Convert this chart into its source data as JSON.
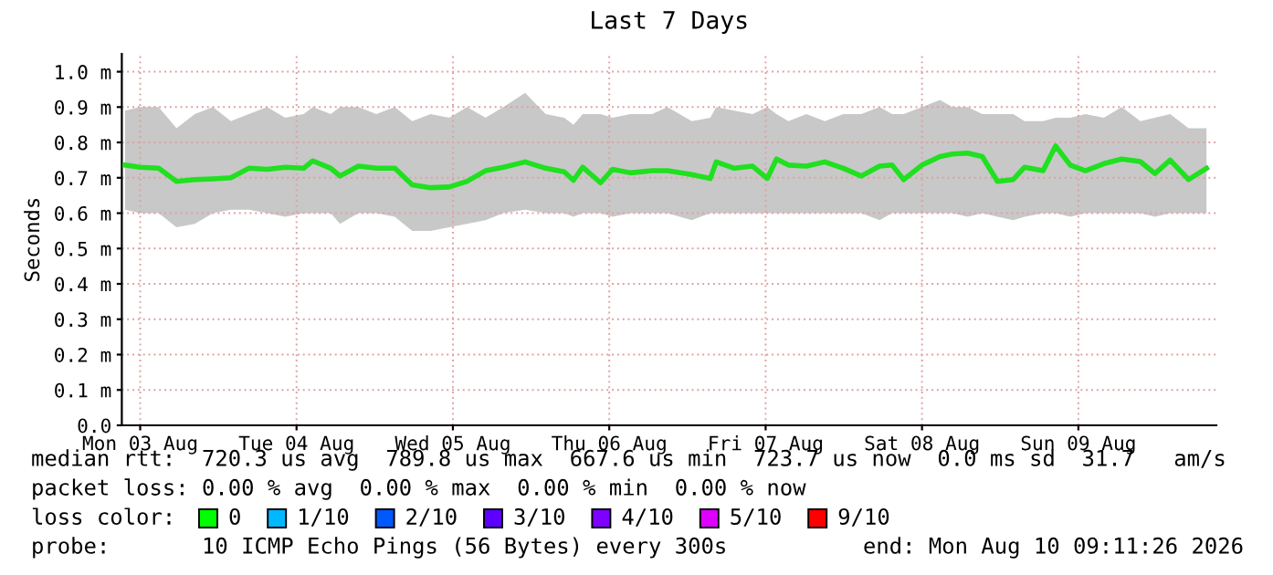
{
  "chart_data": {
    "type": "line",
    "title": "Last 7 Days",
    "ylabel": "Seconds",
    "xlim": [
      "2026-08-03T09:11",
      "2026-08-10T09:11"
    ],
    "xticks": [
      {
        "value": "2026-08-03T12:00",
        "label": "Mon 03 Aug"
      },
      {
        "value": "2026-08-04T12:00",
        "label": "Tue 04 Aug"
      },
      {
        "value": "2026-08-05T12:00",
        "label": "Wed 05 Aug"
      },
      {
        "value": "2026-08-06T12:00",
        "label": "Thu 06 Aug"
      },
      {
        "value": "2026-08-07T12:00",
        "label": "Fri 07 Aug"
      },
      {
        "value": "2026-08-08T12:00",
        "label": "Sat 08 Aug"
      },
      {
        "value": "2026-08-09T12:00",
        "label": "Sun 09 Aug"
      }
    ],
    "ylim": [
      0,
      1.05
    ],
    "yticks": [
      {
        "value": 0,
        "label": "0.0"
      },
      {
        "value": 0.1,
        "label": "0.1 m"
      },
      {
        "value": 0.2,
        "label": "0.2 m"
      },
      {
        "value": 0.3,
        "label": "0.3 m"
      },
      {
        "value": 0.4,
        "label": "0.4 m"
      },
      {
        "value": 0.5,
        "label": "0.5 m"
      },
      {
        "value": 0.6,
        "label": "0.6 m"
      },
      {
        "value": 0.7,
        "label": "0.7 m"
      },
      {
        "value": 0.8,
        "label": "0.8 m"
      },
      {
        "value": 0.9,
        "label": "0.9 m"
      },
      {
        "value": 1.0,
        "label": "1.0 m"
      }
    ],
    "grid": true,
    "legend": false,
    "series": [
      {
        "color": "#20e020",
        "x": [
          "2026-08-03T09:40",
          "2026-08-03T12:00",
          "2026-08-03T14:50",
          "2026-08-03T17:35",
          "2026-08-03T20:23",
          "2026-08-03T23:11",
          "2026-08-04T01:55",
          "2026-08-04T04:40",
          "2026-08-04T07:30",
          "2026-08-04T10:15",
          "2026-08-04T13:05",
          "2026-08-04T14:30",
          "2026-08-04T17:15",
          "2026-08-04T18:40",
          "2026-08-04T21:30",
          "2026-08-05T00:15",
          "2026-08-05T03:05",
          "2026-08-05T05:45",
          "2026-08-05T08:35",
          "2026-08-05T11:25",
          "2026-08-05T14:10",
          "2026-08-05T17:00",
          "2026-08-05T19:45",
          "2026-08-05T23:05",
          "2026-08-06T02:15",
          "2026-08-06T05:05",
          "2026-08-06T06:30",
          "2026-08-06T07:55",
          "2026-08-06T10:40",
          "2026-08-06T12:30",
          "2026-08-06T15:15",
          "2026-08-06T18:35",
          "2026-08-06T20:55",
          "2026-08-07T00:40",
          "2026-08-07T03:30",
          "2026-08-07T04:25",
          "2026-08-07T07:11",
          "2026-08-07T10:00",
          "2026-08-07T12:15",
          "2026-08-07T13:40",
          "2026-08-07T15:30",
          "2026-08-07T18:15",
          "2026-08-07T21:05",
          "2026-08-07T23:55",
          "2026-08-08T02:40",
          "2026-08-08T05:30",
          "2026-08-08T07:25",
          "2026-08-08T09:11",
          "2026-08-08T12:00",
          "2026-08-08T14:45",
          "2026-08-08T16:40",
          "2026-08-08T19:00",
          "2026-08-08T21:15",
          "2026-08-08T23:35",
          "2026-08-09T02:00",
          "2026-08-09T03:45",
          "2026-08-09T06:35",
          "2026-08-09T08:30",
          "2026-08-09T10:45",
          "2026-08-09T13:05",
          "2026-08-09T15:55",
          "2026-08-09T18:40",
          "2026-08-09T21:30",
          "2026-08-09T23:45",
          "2026-08-10T02:05",
          "2026-08-10T04:55",
          "2026-08-10T07:40"
        ],
        "values": [
          0.736,
          0.73,
          0.727,
          0.69,
          0.695,
          0.697,
          0.7,
          0.727,
          0.724,
          0.73,
          0.727,
          0.748,
          0.727,
          0.705,
          0.733,
          0.727,
          0.727,
          0.68,
          0.672,
          0.674,
          0.69,
          0.72,
          0.73,
          0.745,
          0.727,
          0.717,
          0.693,
          0.73,
          0.686,
          0.724,
          0.714,
          0.72,
          0.72,
          0.709,
          0.698,
          0.745,
          0.727,
          0.733,
          0.698,
          0.753,
          0.736,
          0.733,
          0.745,
          0.727,
          0.705,
          0.733,
          0.736,
          0.695,
          0.736,
          0.76,
          0.767,
          0.77,
          0.76,
          0.69,
          0.695,
          0.73,
          0.72,
          0.79,
          0.736,
          0.72,
          0.74,
          0.753,
          0.746,
          0.712,
          0.75,
          0.695,
          0.727
        ],
        "lower": [
          0.61,
          0.6,
          0.6,
          0.56,
          0.57,
          0.6,
          0.61,
          0.61,
          0.6,
          0.59,
          0.6,
          0.6,
          0.6,
          0.57,
          0.6,
          0.6,
          0.59,
          0.55,
          0.55,
          0.56,
          0.57,
          0.58,
          0.6,
          0.61,
          0.6,
          0.6,
          0.59,
          0.6,
          0.6,
          0.59,
          0.6,
          0.6,
          0.6,
          0.58,
          0.6,
          0.6,
          0.6,
          0.6,
          0.6,
          0.6,
          0.6,
          0.6,
          0.6,
          0.6,
          0.6,
          0.58,
          0.6,
          0.6,
          0.6,
          0.6,
          0.6,
          0.59,
          0.6,
          0.59,
          0.58,
          0.59,
          0.6,
          0.6,
          0.59,
          0.6,
          0.6,
          0.6,
          0.6,
          0.59,
          0.6,
          0.6,
          0.6
        ],
        "upper": [
          0.89,
          0.9,
          0.9,
          0.84,
          0.88,
          0.9,
          0.86,
          0.88,
          0.9,
          0.87,
          0.88,
          0.9,
          0.88,
          0.9,
          0.9,
          0.88,
          0.9,
          0.86,
          0.88,
          0.87,
          0.9,
          0.87,
          0.9,
          0.94,
          0.88,
          0.87,
          0.85,
          0.88,
          0.88,
          0.87,
          0.88,
          0.88,
          0.9,
          0.86,
          0.87,
          0.9,
          0.89,
          0.88,
          0.9,
          0.88,
          0.86,
          0.88,
          0.86,
          0.88,
          0.88,
          0.9,
          0.88,
          0.88,
          0.9,
          0.92,
          0.9,
          0.9,
          0.88,
          0.88,
          0.88,
          0.86,
          0.86,
          0.87,
          0.87,
          0.88,
          0.87,
          0.9,
          0.86,
          0.87,
          0.88,
          0.84,
          0.84
        ]
      }
    ],
    "annotations": [
      "median rtt:  720.3 us avg  789.8 us max  667.6 us min  723.7 us now  0.0 ms sd  31.7   am/s",
      "packet loss: 0.00 % avg  0.00 % max  0.00 % min  0.00 % now",
      "loss color:",
      "0",
      "1/10",
      "2/10",
      "3/10",
      "4/10",
      "5/10",
      "9/10",
      "probe:       10 ICMP Echo Pings (56 Bytes) every 300s",
      "end: Mon Aug 10 09:11:26 2026"
    ]
  }
}
